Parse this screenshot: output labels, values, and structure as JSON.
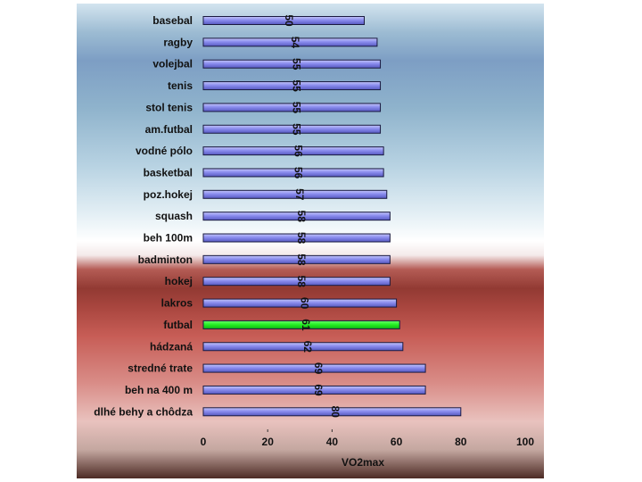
{
  "chart_data": {
    "type": "bar",
    "orientation": "horizontal",
    "categories": [
      "basebal",
      "ragby",
      "volejbal",
      "tenis",
      "stol tenis",
      "am.futbal",
      "vodné pólo",
      "basketbal",
      "poz.hokej",
      "squash",
      "beh 100m",
      "badminton",
      "hokej",
      "lakros",
      "futbal",
      "hádzaná",
      "stredné trate",
      "beh na 400 m",
      "dlhé behy a chôdza"
    ],
    "values": [
      50,
      54,
      55,
      55,
      55,
      55,
      56,
      56,
      57,
      58,
      58,
      58,
      58,
      60,
      61,
      62,
      69,
      69,
      80
    ],
    "highlight_index": 14,
    "colors": {
      "bar": "#8c8ef0",
      "highlight": "#22ee22",
      "bar_border": "#1a1a40"
    },
    "xlabel": "VO2max",
    "xlim": [
      0,
      100
    ],
    "xticks": [
      0,
      20,
      40,
      60,
      80,
      100
    ],
    "grid": false,
    "legend": "none"
  }
}
